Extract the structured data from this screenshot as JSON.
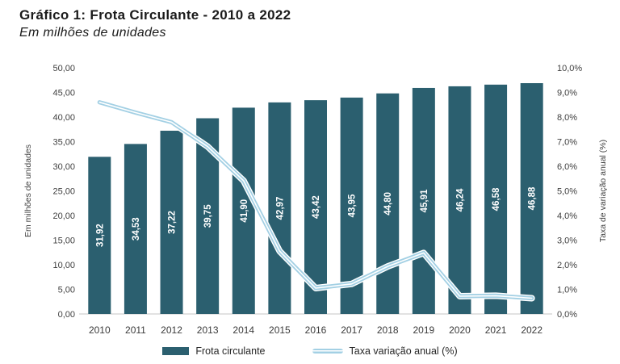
{
  "header": {
    "title": "Gráfico 1: Frota Circulante - 2010 a 2022",
    "subtitle": "Em milhões de unidades"
  },
  "legend": {
    "bar_label": "Frota circulante",
    "line_label": "Taxa variação anual (%)"
  },
  "colors": {
    "bar": "#2B5F6F",
    "line": "#A3D0E4",
    "line_core": "#FFFFFF",
    "axis_line": "#D9D9D9",
    "axis_text": "#404040",
    "x_label_text": "#3A3A3A",
    "bar_value_text": "#FFFFFF"
  },
  "chart_data": {
    "type": "combo",
    "title": "Gráfico 1: Frota Circulante - 2010 a 2022",
    "subtitle": "Em milhões de unidades",
    "categories": [
      "2010",
      "2011",
      "2012",
      "2013",
      "2014",
      "2015",
      "2016",
      "2017",
      "2018",
      "2019",
      "2020",
      "2021",
      "2022"
    ],
    "series": [
      {
        "name": "Frota circulante",
        "type": "bar",
        "axis": "left",
        "values": [
          31.92,
          34.53,
          37.22,
          39.75,
          41.9,
          42.97,
          43.42,
          43.95,
          44.8,
          45.91,
          46.24,
          46.58,
          46.88
        ],
        "value_labels": [
          "31,92",
          "34,53",
          "37,22",
          "39,75",
          "41,90",
          "42,97",
          "43,42",
          "43,95",
          "44,80",
          "45,91",
          "46,24",
          "46,58",
          "46,88"
        ]
      },
      {
        "name": "Taxa variação anual (%)",
        "type": "line",
        "axis": "right",
        "values": [
          8.6,
          8.18,
          7.79,
          6.8,
          5.41,
          2.55,
          1.05,
          1.22,
          1.93,
          2.48,
          0.72,
          0.74,
          0.64
        ]
      }
    ],
    "left_axis": {
      "title": "Em milhões de unidades",
      "min": 0,
      "max": 50,
      "tick_labels": [
        "0,00",
        "5,00",
        "10,00",
        "15,00",
        "20,00",
        "25,00",
        "30,00",
        "35,00",
        "40,00",
        "45,00",
        "50,00"
      ]
    },
    "right_axis": {
      "title": "Taxa de variação anual (%)",
      "min": 0,
      "max": 10,
      "tick_labels": [
        "0,0%",
        "1,0%",
        "2,0%",
        "3,0%",
        "4,0%",
        "5,0%",
        "6,0%",
        "7,0%",
        "8,0%",
        "9,0%",
        "10,0%"
      ]
    },
    "grid": false,
    "legend_position": "bottom"
  }
}
